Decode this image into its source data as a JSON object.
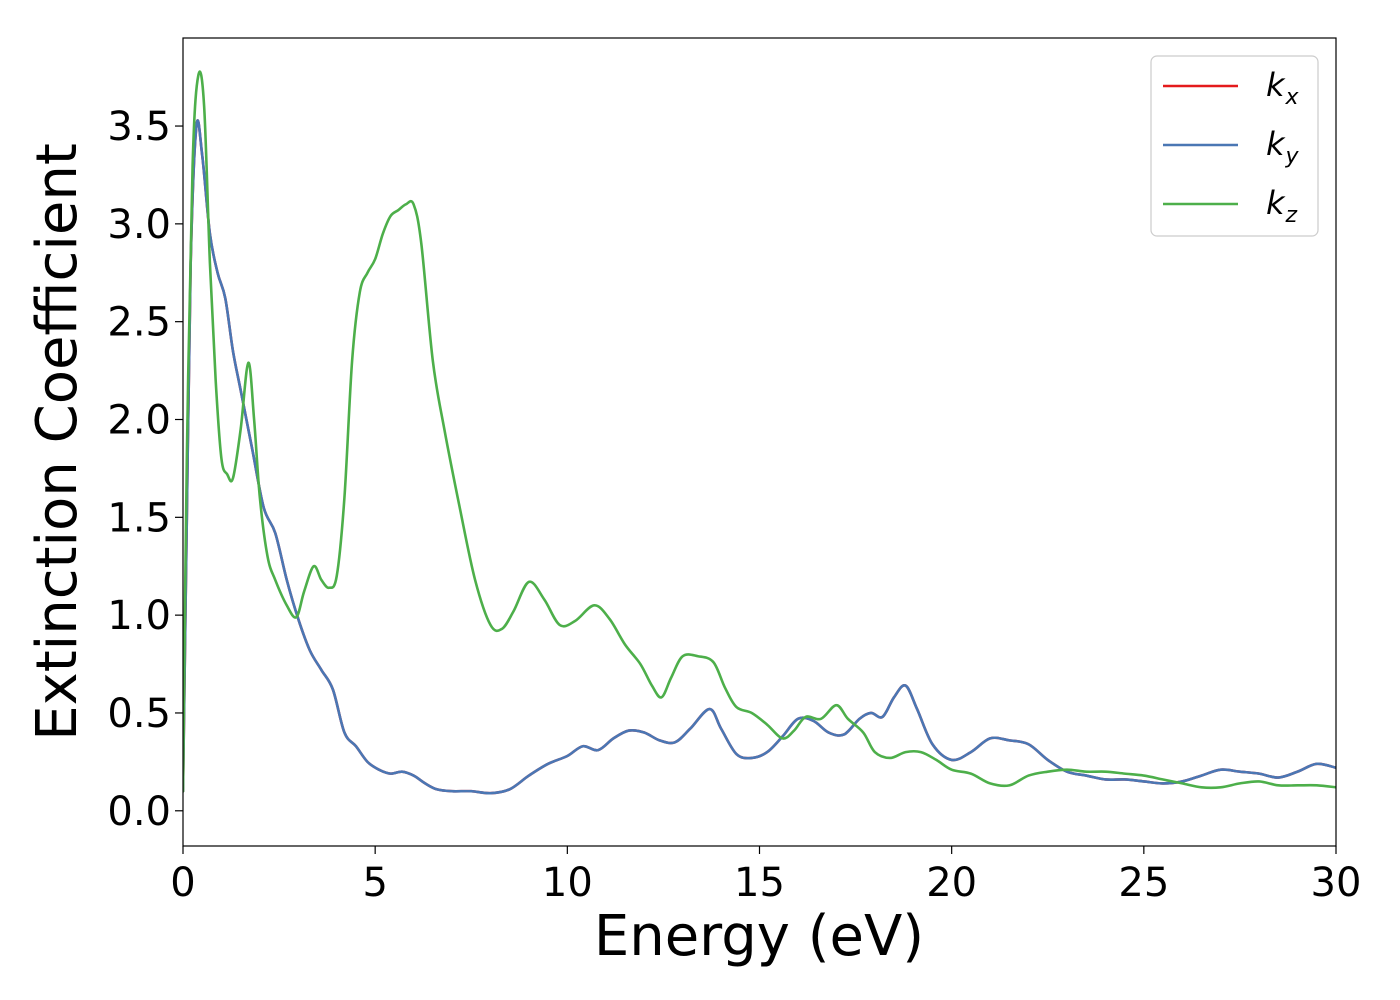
{
  "chart_data": {
    "type": "line",
    "xlabel": "Energy (eV)",
    "ylabel": "Extinction Coefficient",
    "xlim": [
      0,
      30
    ],
    "ylim": [
      -0.18,
      3.95
    ],
    "xticks": [
      0,
      5,
      10,
      15,
      20,
      25,
      30
    ],
    "xtick_labels": [
      "0",
      "5",
      "10",
      "15",
      "20",
      "25",
      "30"
    ],
    "yticks": [
      0.0,
      0.5,
      1.0,
      1.5,
      2.0,
      2.5,
      3.0,
      3.5
    ],
    "ytick_labels": [
      "0.0",
      "0.5",
      "1.0",
      "1.5",
      "2.0",
      "2.5",
      "3.0",
      "3.5"
    ],
    "grid": false,
    "legend_position": "top-right",
    "series": [
      {
        "name": "k",
        "sub": "x",
        "color": "#e41a1c",
        "x": [
          0,
          0.1,
          0.2,
          0.35,
          0.5,
          0.7,
          0.9,
          1.1,
          1.3,
          1.5,
          1.8,
          2.1,
          2.4,
          2.7,
          3.0,
          3.3,
          3.6,
          3.9,
          4.2,
          4.5,
          4.8,
          5.1,
          5.4,
          5.7,
          6.0,
          6.3,
          6.6,
          7.0,
          7.5,
          8.0,
          8.5,
          9.0,
          9.5,
          10.0,
          10.4,
          10.8,
          11.2,
          11.6,
          12.0,
          12.4,
          12.8,
          13.2,
          13.7,
          14.0,
          14.4,
          14.8,
          15.2,
          15.6,
          16.0,
          16.4,
          16.8,
          17.2,
          17.6,
          17.9,
          18.2,
          18.5,
          18.8,
          19.1,
          19.5,
          20.0,
          20.5,
          21.0,
          21.5,
          22.0,
          22.5,
          23.0,
          23.5,
          24.0,
          24.5,
          25.0,
          25.5,
          26.0,
          26.5,
          27.0,
          27.5,
          28.0,
          28.5,
          29.0,
          29.5,
          30.0
        ],
        "y": [
          0.1,
          1.5,
          2.8,
          3.5,
          3.35,
          2.95,
          2.75,
          2.62,
          2.35,
          2.15,
          1.85,
          1.55,
          1.42,
          1.18,
          0.98,
          0.82,
          0.72,
          0.62,
          0.4,
          0.33,
          0.25,
          0.21,
          0.19,
          0.2,
          0.18,
          0.14,
          0.11,
          0.1,
          0.1,
          0.09,
          0.11,
          0.18,
          0.24,
          0.28,
          0.33,
          0.31,
          0.37,
          0.41,
          0.4,
          0.36,
          0.35,
          0.42,
          0.52,
          0.42,
          0.29,
          0.27,
          0.3,
          0.38,
          0.47,
          0.46,
          0.4,
          0.39,
          0.47,
          0.5,
          0.48,
          0.58,
          0.64,
          0.52,
          0.34,
          0.26,
          0.3,
          0.37,
          0.36,
          0.34,
          0.26,
          0.2,
          0.18,
          0.16,
          0.16,
          0.15,
          0.14,
          0.15,
          0.18,
          0.21,
          0.2,
          0.19,
          0.17,
          0.2,
          0.24,
          0.22
        ]
      },
      {
        "name": "k",
        "sub": "y",
        "color": "#4a77b4",
        "x": [
          0,
          0.1,
          0.2,
          0.35,
          0.5,
          0.7,
          0.9,
          1.1,
          1.3,
          1.5,
          1.8,
          2.1,
          2.4,
          2.7,
          3.0,
          3.3,
          3.6,
          3.9,
          4.2,
          4.5,
          4.8,
          5.1,
          5.4,
          5.7,
          6.0,
          6.3,
          6.6,
          7.0,
          7.5,
          8.0,
          8.5,
          9.0,
          9.5,
          10.0,
          10.4,
          10.8,
          11.2,
          11.6,
          12.0,
          12.4,
          12.8,
          13.2,
          13.7,
          14.0,
          14.4,
          14.8,
          15.2,
          15.6,
          16.0,
          16.4,
          16.8,
          17.2,
          17.6,
          17.9,
          18.2,
          18.5,
          18.8,
          19.1,
          19.5,
          20.0,
          20.5,
          21.0,
          21.5,
          22.0,
          22.5,
          23.0,
          23.5,
          24.0,
          24.5,
          25.0,
          25.5,
          26.0,
          26.5,
          27.0,
          27.5,
          28.0,
          28.5,
          29.0,
          29.5,
          30.0
        ],
        "y": [
          0.1,
          1.5,
          2.8,
          3.5,
          3.35,
          2.95,
          2.75,
          2.62,
          2.35,
          2.15,
          1.85,
          1.55,
          1.42,
          1.18,
          0.98,
          0.82,
          0.72,
          0.62,
          0.4,
          0.33,
          0.25,
          0.21,
          0.19,
          0.2,
          0.18,
          0.14,
          0.11,
          0.1,
          0.1,
          0.09,
          0.11,
          0.18,
          0.24,
          0.28,
          0.33,
          0.31,
          0.37,
          0.41,
          0.4,
          0.36,
          0.35,
          0.42,
          0.52,
          0.42,
          0.29,
          0.27,
          0.3,
          0.38,
          0.47,
          0.46,
          0.4,
          0.39,
          0.47,
          0.5,
          0.48,
          0.58,
          0.64,
          0.52,
          0.34,
          0.26,
          0.3,
          0.37,
          0.36,
          0.34,
          0.26,
          0.2,
          0.18,
          0.16,
          0.16,
          0.15,
          0.14,
          0.15,
          0.18,
          0.21,
          0.2,
          0.19,
          0.17,
          0.2,
          0.24,
          0.22
        ]
      },
      {
        "name": "k",
        "sub": "z",
        "color": "#4daf4a",
        "x": [
          0,
          0.1,
          0.25,
          0.4,
          0.55,
          0.7,
          0.85,
          1.0,
          1.15,
          1.3,
          1.5,
          1.7,
          1.85,
          2.0,
          2.2,
          2.4,
          2.7,
          2.95,
          3.15,
          3.4,
          3.6,
          3.8,
          4.0,
          4.2,
          4.4,
          4.6,
          4.8,
          5.0,
          5.2,
          5.4,
          5.6,
          5.8,
          6.0,
          6.2,
          6.5,
          6.8,
          7.2,
          7.6,
          8.0,
          8.3,
          8.6,
          9.0,
          9.4,
          9.8,
          10.2,
          10.7,
          11.1,
          11.5,
          11.9,
          12.2,
          12.45,
          12.7,
          13.0,
          13.4,
          13.8,
          14.1,
          14.4,
          14.8,
          15.2,
          15.6,
          15.9,
          16.2,
          16.6,
          17.0,
          17.3,
          17.7,
          18.0,
          18.4,
          18.8,
          19.2,
          19.6,
          20.0,
          20.5,
          21.0,
          21.5,
          22.0,
          22.5,
          23.0,
          23.5,
          24.0,
          24.5,
          25.0,
          25.5,
          26.0,
          26.5,
          27.0,
          27.5,
          28.0,
          28.5,
          29.0,
          29.5,
          30.0
        ],
        "y": [
          0.1,
          1.8,
          3.3,
          3.76,
          3.6,
          2.8,
          2.2,
          1.8,
          1.72,
          1.7,
          1.95,
          2.29,
          2.0,
          1.6,
          1.3,
          1.18,
          1.05,
          0.99,
          1.12,
          1.25,
          1.18,
          1.14,
          1.2,
          1.6,
          2.3,
          2.65,
          2.75,
          2.82,
          2.95,
          3.04,
          3.07,
          3.1,
          3.1,
          2.9,
          2.3,
          1.95,
          1.55,
          1.18,
          0.95,
          0.93,
          1.02,
          1.17,
          1.08,
          0.95,
          0.97,
          1.05,
          0.98,
          0.85,
          0.75,
          0.64,
          0.58,
          0.68,
          0.79,
          0.79,
          0.76,
          0.63,
          0.53,
          0.5,
          0.44,
          0.37,
          0.41,
          0.48,
          0.47,
          0.54,
          0.47,
          0.4,
          0.3,
          0.27,
          0.3,
          0.3,
          0.26,
          0.21,
          0.19,
          0.14,
          0.13,
          0.18,
          0.2,
          0.21,
          0.2,
          0.2,
          0.19,
          0.18,
          0.16,
          0.14,
          0.12,
          0.12,
          0.14,
          0.15,
          0.13,
          0.13,
          0.13,
          0.12
        ]
      }
    ]
  }
}
